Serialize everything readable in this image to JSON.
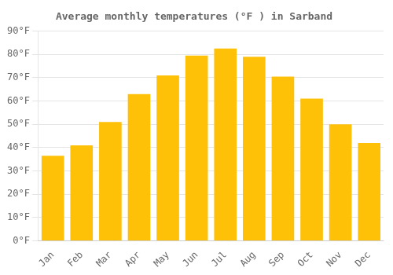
{
  "chart_data": {
    "type": "bar",
    "title": "Average monthly temperatures (°F ) in Sarband",
    "categories": [
      "Jan",
      "Feb",
      "Mar",
      "Apr",
      "May",
      "Jun",
      "Jul",
      "Aug",
      "Sep",
      "Oct",
      "Nov",
      "Dec"
    ],
    "values": [
      36.5,
      41.0,
      51.0,
      63.0,
      71.0,
      79.5,
      82.5,
      79.0,
      70.5,
      61.0,
      50.0,
      42.0
    ],
    "color": "#FFC107",
    "ylim": [
      0,
      90
    ],
    "yticks": [
      {
        "value": 0,
        "label": "0°F"
      },
      {
        "value": 10,
        "label": "10°F"
      },
      {
        "value": 20,
        "label": "20°F"
      },
      {
        "value": 30,
        "label": "30°F"
      },
      {
        "value": 40,
        "label": "40°F"
      },
      {
        "value": 50,
        "label": "50°F"
      },
      {
        "value": 60,
        "label": "60°F"
      },
      {
        "value": 70,
        "label": "70°F"
      },
      {
        "value": 80,
        "label": "80°F"
      },
      {
        "value": 90,
        "label": "90°F"
      }
    ],
    "grid": true
  }
}
